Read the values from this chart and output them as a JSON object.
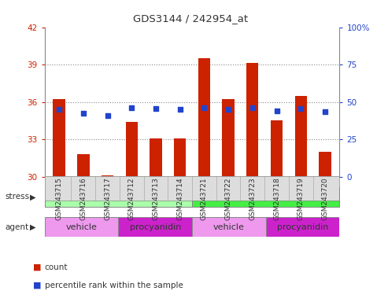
{
  "title": "GDS3144 / 242954_at",
  "samples": [
    "GSM243715",
    "GSM243716",
    "GSM243717",
    "GSM243712",
    "GSM243713",
    "GSM243714",
    "GSM243721",
    "GSM243722",
    "GSM243723",
    "GSM243718",
    "GSM243719",
    "GSM243720"
  ],
  "count_values": [
    36.2,
    31.8,
    30.1,
    34.4,
    33.1,
    33.1,
    39.5,
    36.2,
    39.1,
    34.5,
    36.5,
    32.0
  ],
  "percentile_values": [
    35.4,
    35.1,
    34.9,
    35.55,
    35.5,
    35.4,
    35.55,
    35.4,
    35.55,
    35.25,
    35.5,
    35.2
  ],
  "ylim_left": [
    30,
    42
  ],
  "ylim_right": [
    0,
    100
  ],
  "yticks_left": [
    30,
    33,
    36,
    39,
    42
  ],
  "yticks_right": [
    0,
    25,
    50,
    75,
    100
  ],
  "bar_color": "#cc2200",
  "dot_color": "#2244cc",
  "grid_color": "#888888",
  "bar_width": 0.5,
  "uninflamed_color": "#aaffaa",
  "inflamed_color": "#44ee44",
  "vehicle_color": "#ee99ee",
  "procyanidin_color": "#cc22cc",
  "left_axis_color": "#cc2200",
  "right_axis_color": "#2244cc",
  "background_color": "#ffffff",
  "label_bg_color": "#dddddd"
}
